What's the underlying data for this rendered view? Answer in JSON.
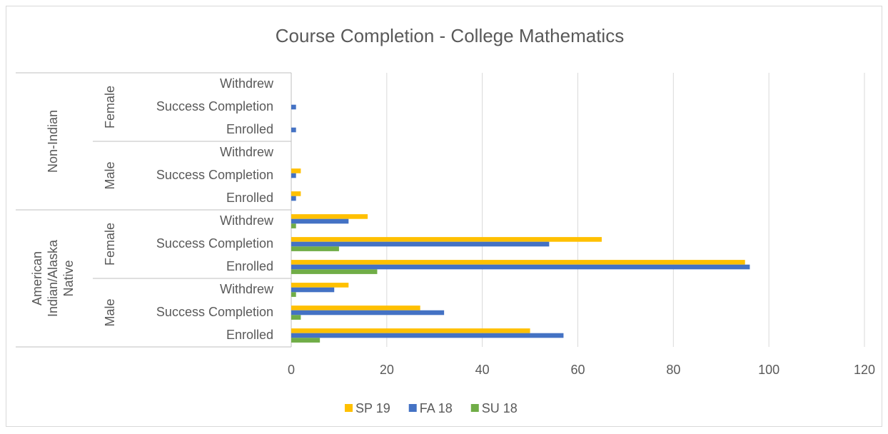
{
  "chart_data": {
    "type": "bar",
    "orientation": "horizontal",
    "title": "Course Completion - College Mathematics",
    "categories": [
      "Enrolled",
      "Success Completion",
      "Withdrew",
      "Enrolled",
      "Success Completion",
      "Withdrew",
      "Enrolled",
      "Success Completion",
      "Withdrew",
      "Enrolled",
      "Success Completion",
      "Withdrew"
    ],
    "groups": [
      {
        "label": "American Indian/Alaska Native",
        "subgroups": [
          "Male",
          "Female"
        ]
      },
      {
        "label": "Non-Indian",
        "subgroups": [
          "Male",
          "Female"
        ]
      }
    ],
    "series": [
      {
        "name": "SP 19",
        "color": "#FFC000",
        "values": [
          50,
          27,
          12,
          95,
          65,
          16,
          2,
          2,
          0,
          0,
          0,
          0
        ]
      },
      {
        "name": "FA 18",
        "color": "#4472C4",
        "values": [
          57,
          32,
          9,
          96,
          54,
          12,
          1,
          1,
          0,
          1,
          1,
          0
        ]
      },
      {
        "name": "SU 18",
        "color": "#70AD47",
        "values": [
          6,
          2,
          1,
          18,
          10,
          1,
          0,
          0,
          0,
          0,
          0,
          0
        ]
      }
    ],
    "xlim": [
      0,
      120
    ],
    "xticks": [
      0,
      20,
      40,
      60,
      80,
      100,
      120
    ],
    "grid": true,
    "legend": "bottom"
  }
}
